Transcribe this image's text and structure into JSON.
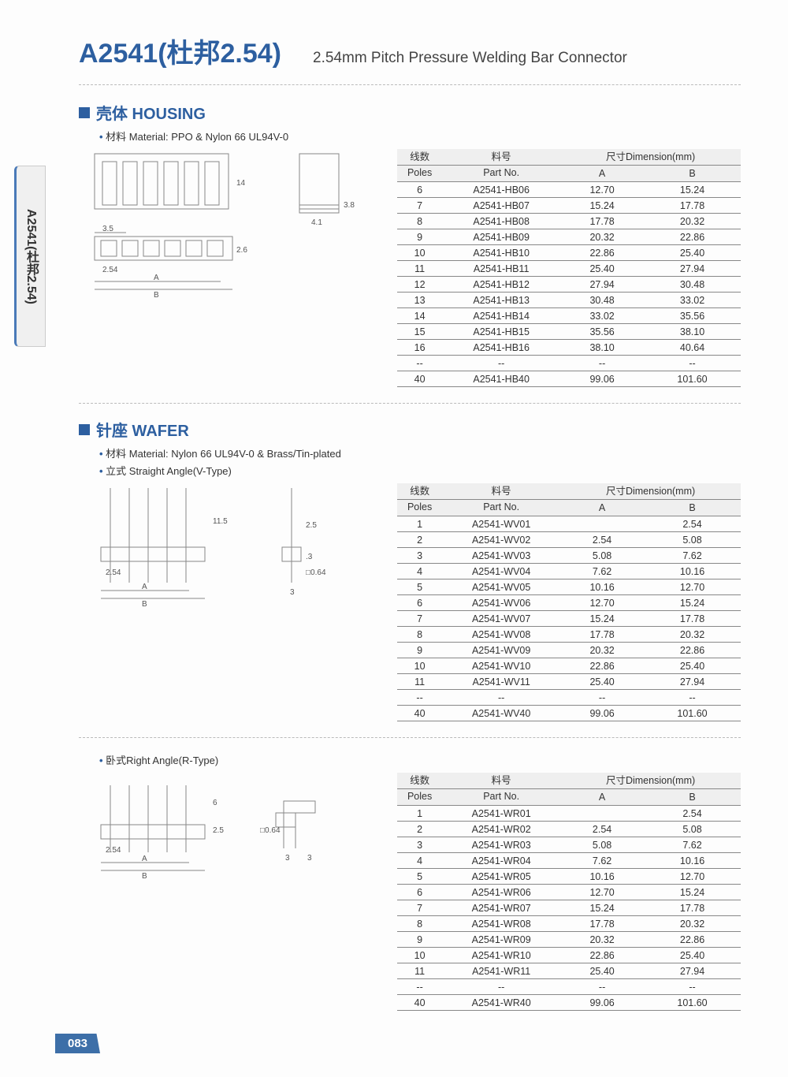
{
  "sideTab": "A2541(杜邦2.54)",
  "header": {
    "title": "A2541(杜邦2.54)",
    "subtitle": "2.54mm Pitch Pressure Welding Bar Connector"
  },
  "pageNumber": "083",
  "sections": [
    {
      "title": "壳体 HOUSING",
      "bullets": [
        "材料 Material: PPO & Nylon 66 UL94V-0"
      ],
      "tableHeader": {
        "poles_cn": "线数",
        "poles_en": "Poles",
        "part_cn": "料号",
        "part_en": "Part No.",
        "dim_label": "尺寸Dimension(mm)",
        "a": "A",
        "b": "B"
      },
      "rows": [
        {
          "poles": "6",
          "part": "A2541-HB06",
          "a": "12.70",
          "b": "15.24"
        },
        {
          "poles": "7",
          "part": "A2541-HB07",
          "a": "15.24",
          "b": "17.78"
        },
        {
          "poles": "8",
          "part": "A2541-HB08",
          "a": "17.78",
          "b": "20.32"
        },
        {
          "poles": "9",
          "part": "A2541-HB09",
          "a": "20.32",
          "b": "22.86"
        },
        {
          "poles": "10",
          "part": "A2541-HB10",
          "a": "22.86",
          "b": "25.40"
        },
        {
          "poles": "11",
          "part": "A2541-HB11",
          "a": "25.40",
          "b": "27.94"
        },
        {
          "poles": "12",
          "part": "A2541-HB12",
          "a": "27.94",
          "b": "30.48"
        },
        {
          "poles": "13",
          "part": "A2541-HB13",
          "a": "30.48",
          "b": "33.02"
        },
        {
          "poles": "14",
          "part": "A2541-HB14",
          "a": "33.02",
          "b": "35.56"
        },
        {
          "poles": "15",
          "part": "A2541-HB15",
          "a": "35.56",
          "b": "38.10"
        },
        {
          "poles": "16",
          "part": "A2541-HB16",
          "a": "38.10",
          "b": "40.64"
        },
        {
          "poles": "--",
          "part": "--",
          "a": "--",
          "b": "--"
        },
        {
          "poles": "40",
          "part": "A2541-HB40",
          "a": "99.06",
          "b": "101.60"
        }
      ],
      "diagram_labels": {
        "h": "14",
        "w": "3.5",
        "pitch": "2.54",
        "t": "2.6",
        "side_h": "3.8",
        "side_w": "4.1",
        "a": "A",
        "b": "B"
      }
    },
    {
      "title": "针座 WAFER",
      "bullets": [
        "材料 Material: Nylon 66 UL94V-0 & Brass/Tin-plated",
        "立式 Straight Angle(V-Type)"
      ],
      "tableHeader": {
        "poles_cn": "线数",
        "poles_en": "Poles",
        "part_cn": "料号",
        "part_en": "Part No.",
        "dim_label": "尺寸Dimension(mm)",
        "a": "A",
        "b": "B"
      },
      "rows": [
        {
          "poles": "1",
          "part": "A2541-WV01",
          "a": "",
          "b": "2.54"
        },
        {
          "poles": "2",
          "part": "A2541-WV02",
          "a": "2.54",
          "b": "5.08"
        },
        {
          "poles": "3",
          "part": "A2541-WV03",
          "a": "5.08",
          "b": "7.62"
        },
        {
          "poles": "4",
          "part": "A2541-WV04",
          "a": "7.62",
          "b": "10.16"
        },
        {
          "poles": "5",
          "part": "A2541-WV05",
          "a": "10.16",
          "b": "12.70"
        },
        {
          "poles": "6",
          "part": "A2541-WV06",
          "a": "12.70",
          "b": "15.24"
        },
        {
          "poles": "7",
          "part": "A2541-WV07",
          "a": "15.24",
          "b": "17.78"
        },
        {
          "poles": "8",
          "part": "A2541-WV08",
          "a": "17.78",
          "b": "20.32"
        },
        {
          "poles": "9",
          "part": "A2541-WV09",
          "a": "20.32",
          "b": "22.86"
        },
        {
          "poles": "10",
          "part": "A2541-WV10",
          "a": "22.86",
          "b": "25.40"
        },
        {
          "poles": "11",
          "part": "A2541-WV11",
          "a": "25.40",
          "b": "27.94"
        },
        {
          "poles": "--",
          "part": "--",
          "a": "--",
          "b": "--"
        },
        {
          "poles": "40",
          "part": "A2541-WV40",
          "a": "99.06",
          "b": "101.60"
        }
      ],
      "diagram_labels": {
        "h": "11.5",
        "pitch": "2.54",
        "pin": "□0.64",
        "tail": "3",
        "th": "2.5",
        "gap": ".3",
        "a": "A",
        "b": "B"
      }
    },
    {
      "title": "",
      "bullets": [
        "卧式Right Angle(R-Type)"
      ],
      "tableHeader": {
        "poles_cn": "线数",
        "poles_en": "Poles",
        "part_cn": "料号",
        "part_en": "Part No.",
        "dim_label": "尺寸Dimension(mm)",
        "a": "A",
        "b": "B"
      },
      "rows": [
        {
          "poles": "1",
          "part": "A2541-WR01",
          "a": "",
          "b": "2.54"
        },
        {
          "poles": "2",
          "part": "A2541-WR02",
          "a": "2.54",
          "b": "5.08"
        },
        {
          "poles": "3",
          "part": "A2541-WR03",
          "a": "5.08",
          "b": "7.62"
        },
        {
          "poles": "4",
          "part": "A2541-WR04",
          "a": "7.62",
          "b": "10.16"
        },
        {
          "poles": "5",
          "part": "A2541-WR05",
          "a": "10.16",
          "b": "12.70"
        },
        {
          "poles": "6",
          "part": "A2541-WR06",
          "a": "12.70",
          "b": "15.24"
        },
        {
          "poles": "7",
          "part": "A2541-WR07",
          "a": "15.24",
          "b": "17.78"
        },
        {
          "poles": "8",
          "part": "A2541-WR08",
          "a": "17.78",
          "b": "20.32"
        },
        {
          "poles": "9",
          "part": "A2541-WR09",
          "a": "20.32",
          "b": "22.86"
        },
        {
          "poles": "10",
          "part": "A2541-WR10",
          "a": "22.86",
          "b": "25.40"
        },
        {
          "poles": "11",
          "part": "A2541-WR11",
          "a": "25.40",
          "b": "27.94"
        },
        {
          "poles": "--",
          "part": "--",
          "a": "--",
          "b": "--"
        },
        {
          "poles": "40",
          "part": "A2541-WR40",
          "a": "99.06",
          "b": "101.60"
        }
      ],
      "diagram_labels": {
        "h": "6",
        "th": "2.5",
        "pitch": "2.54",
        "pin": "□0.64",
        "l1": "3",
        "l2": "3",
        "a": "A",
        "b": "B"
      }
    }
  ]
}
